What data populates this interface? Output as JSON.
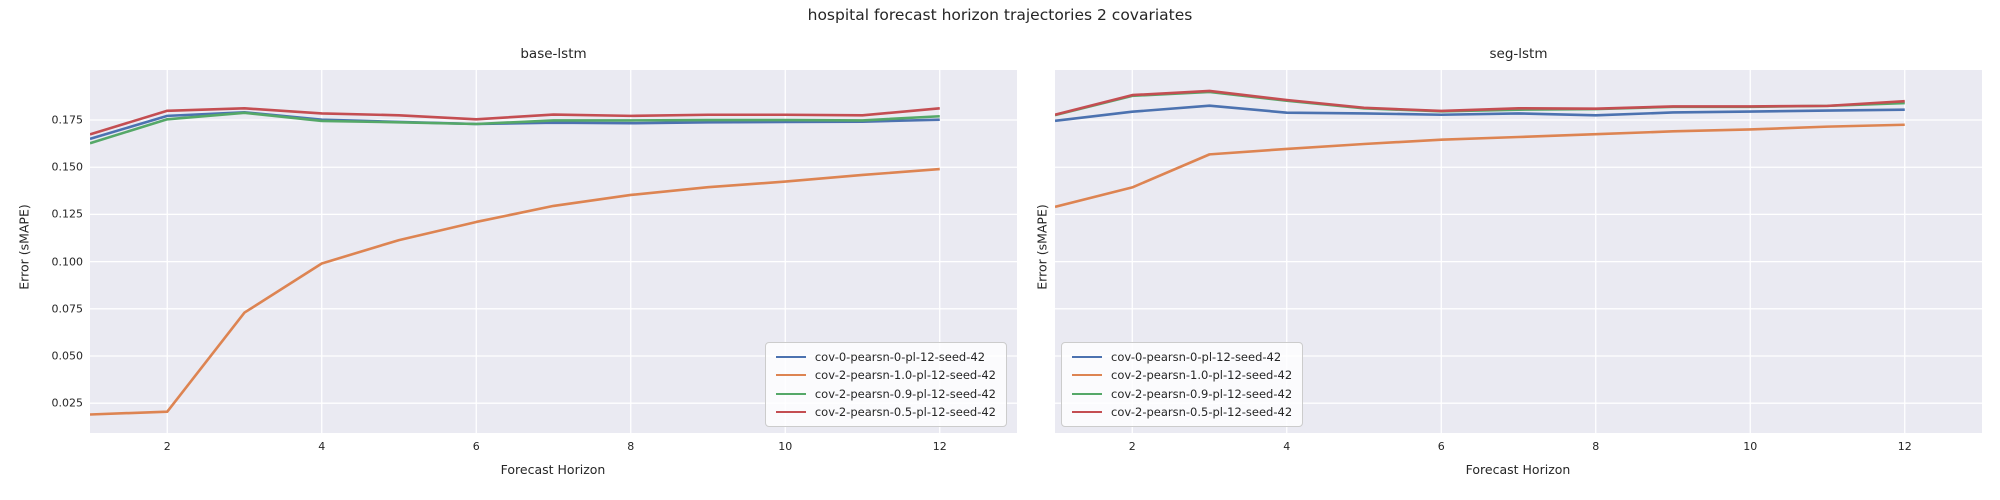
{
  "suptitle": "hospital forecast horizon trajectories 2 covariates",
  "colors": {
    "blue": "#4c72b0",
    "orange": "#dd8452",
    "green": "#55a868",
    "red": "#c44e52",
    "axes_background": "#eaeaf2",
    "grid": "#ffffff",
    "text": "#262626"
  },
  "chart_data": [
    {
      "type": "line",
      "title": "base-lstm",
      "xlabel": "Forecast Horizon",
      "ylabel": "Error (sMAPE)",
      "x": [
        1,
        2,
        3,
        4,
        5,
        6,
        7,
        8,
        9,
        10,
        11,
        12
      ],
      "xlim": [
        1,
        13
      ],
      "ylim": [
        0.0092,
        0.2015
      ],
      "xticks": [
        2,
        4,
        6,
        8,
        10,
        12
      ],
      "xtick_labels": [
        "2",
        "4",
        "6",
        "8",
        "10",
        "12"
      ],
      "yticks": [
        0.175,
        0.15,
        0.125,
        0.1,
        0.075,
        0.05,
        0.025
      ],
      "ytick_labels": [
        "0.175",
        "0.150",
        "0.125",
        "0.100",
        "0.075",
        "0.050",
        "0.025"
      ],
      "show_ytick_labels": true,
      "grid": true,
      "legend_position": "lower right",
      "series": [
        {
          "name": "cov-0-pearsn-0-pl-12-seed-42",
          "color_key": "blue",
          "values": [
            0.165,
            0.1772,
            0.1791,
            0.1752,
            0.174,
            0.1729,
            0.1736,
            0.1733,
            0.1738,
            0.174,
            0.1741,
            0.1752
          ]
        },
        {
          "name": "cov-2-pearsn-1.0-pl-12-seed-42",
          "color_key": "orange",
          "values": [
            0.019,
            0.0205,
            0.073,
            0.099,
            0.1114,
            0.121,
            0.1295,
            0.1353,
            0.1394,
            0.1424,
            0.1459,
            0.149
          ]
        },
        {
          "name": "cov-2-pearsn-0.9-pl-12-seed-42",
          "color_key": "green",
          "values": [
            0.1627,
            0.1754,
            0.1788,
            0.1745,
            0.1738,
            0.1729,
            0.1748,
            0.1748,
            0.175,
            0.175,
            0.1748,
            0.177
          ]
        },
        {
          "name": "cov-2-pearsn-0.5-pl-12-seed-42",
          "color_key": "red",
          "values": [
            0.1674,
            0.1799,
            0.1812,
            0.1785,
            0.1775,
            0.1754,
            0.1779,
            0.1772,
            0.1778,
            0.1778,
            0.1775,
            0.1812
          ]
        }
      ]
    },
    {
      "type": "line",
      "title": "seg-lstm",
      "xlabel": "Forecast Horizon",
      "ylabel": "Error (sMAPE)",
      "x": [
        1,
        2,
        3,
        4,
        5,
        6,
        7,
        8,
        9,
        10,
        11,
        12
      ],
      "xlim": [
        1,
        13
      ],
      "ylim": [
        0.0092,
        0.2015
      ],
      "xticks": [
        2,
        4,
        6,
        8,
        10,
        12
      ],
      "xtick_labels": [
        "2",
        "4",
        "6",
        "8",
        "10",
        "12"
      ],
      "yticks": [
        0.175,
        0.15,
        0.125,
        0.1,
        0.075,
        0.05,
        0.025
      ],
      "ytick_labels": [],
      "show_ytick_labels": false,
      "grid": true,
      "legend_position": "lower left",
      "series": [
        {
          "name": "cov-0-pearsn-0-pl-12-seed-42",
          "color_key": "blue",
          "values": [
            0.1746,
            0.1794,
            0.1826,
            0.1789,
            0.1785,
            0.1778,
            0.1785,
            0.1775,
            0.179,
            0.1795,
            0.18,
            0.1805
          ]
        },
        {
          "name": "cov-2-pearsn-1.0-pl-12-seed-42",
          "color_key": "orange",
          "values": [
            0.129,
            0.1393,
            0.1568,
            0.1597,
            0.1623,
            0.1646,
            0.166,
            0.1675,
            0.169,
            0.17,
            0.1715,
            0.1725
          ]
        },
        {
          "name": "cov-2-pearsn-0.9-pl-12-seed-42",
          "color_key": "green",
          "values": [
            0.1776,
            0.1878,
            0.1899,
            0.1852,
            0.1812,
            0.1796,
            0.1805,
            0.1808,
            0.182,
            0.182,
            0.1825,
            0.184
          ]
        },
        {
          "name": "cov-2-pearsn-0.5-pl-12-seed-42",
          "color_key": "red",
          "values": [
            0.1778,
            0.1882,
            0.1904,
            0.1856,
            0.1815,
            0.1798,
            0.1812,
            0.181,
            0.1822,
            0.1822,
            0.1825,
            0.185
          ]
        }
      ]
    }
  ]
}
